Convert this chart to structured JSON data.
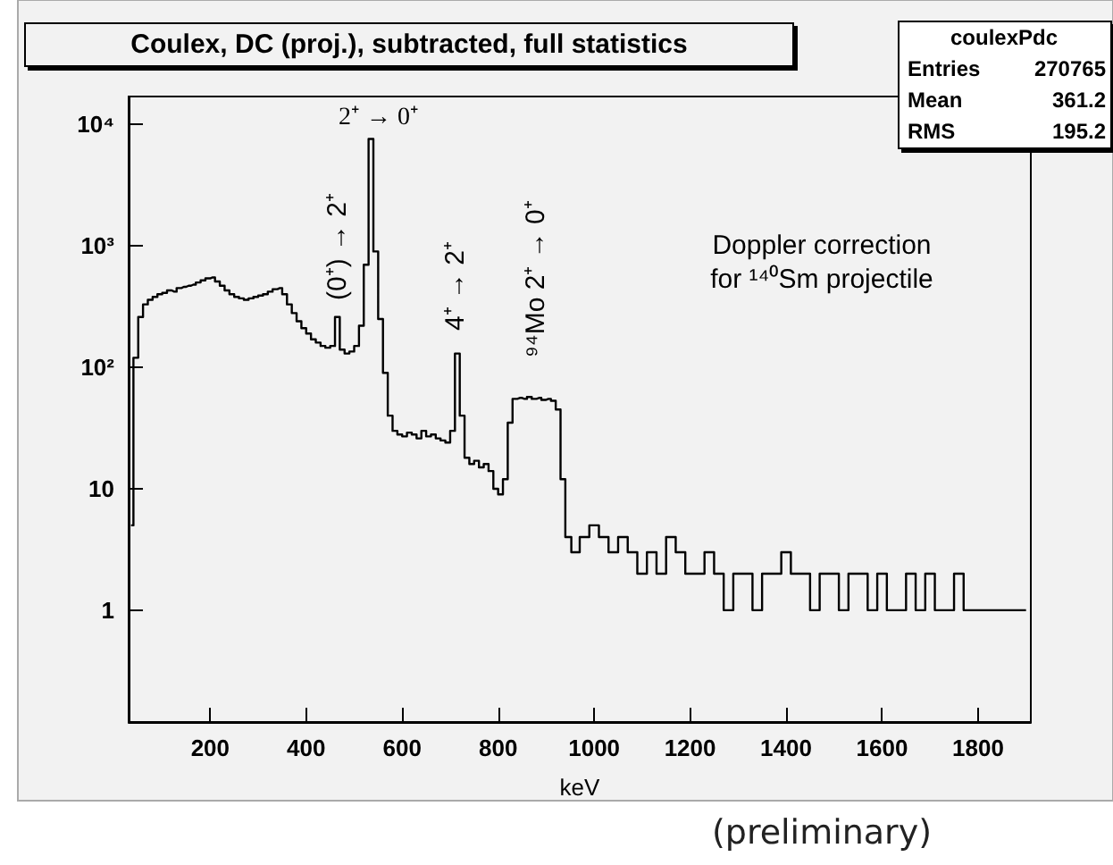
{
  "chart_data": {
    "type": "step",
    "title": "Coulex, DC (proj.), subtracted, full statistics",
    "xlabel": "keV",
    "color": "#000000",
    "x": [
      35,
      45,
      55,
      65,
      75,
      85,
      95,
      105,
      115,
      125,
      135,
      145,
      155,
      165,
      175,
      185,
      195,
      205,
      215,
      225,
      235,
      245,
      255,
      265,
      275,
      285,
      295,
      305,
      315,
      325,
      335,
      345,
      355,
      365,
      375,
      385,
      395,
      405,
      415,
      425,
      435,
      445,
      455,
      465,
      475,
      485,
      495,
      505,
      515,
      525,
      535,
      545,
      555,
      565,
      575,
      585,
      595,
      605,
      615,
      625,
      635,
      645,
      655,
      665,
      675,
      685,
      695,
      705,
      715,
      725,
      735,
      745,
      755,
      765,
      775,
      785,
      795,
      805,
      815,
      825,
      835,
      845,
      855,
      865,
      875,
      885,
      895,
      905,
      915,
      925,
      935,
      945,
      960,
      980,
      1000,
      1020,
      1040,
      1060,
      1080,
      1100,
      1120,
      1140,
      1160,
      1180,
      1200,
      1220,
      1240,
      1260,
      1280,
      1300,
      1320,
      1340,
      1360,
      1380,
      1400,
      1420,
      1440,
      1460,
      1480,
      1500,
      1520,
      1540,
      1560,
      1580,
      1600,
      1620,
      1640,
      1660,
      1680,
      1700,
      1720,
      1740,
      1760,
      1780,
      1800,
      1820,
      1840,
      1860,
      1880,
      1900
    ],
    "values": [
      5,
      120,
      260,
      330,
      360,
      380,
      400,
      410,
      430,
      420,
      450,
      460,
      470,
      480,
      500,
      520,
      540,
      550,
      510,
      470,
      430,
      400,
      380,
      370,
      360,
      370,
      380,
      390,
      400,
      420,
      440,
      450,
      400,
      330,
      280,
      240,
      210,
      190,
      170,
      160,
      150,
      145,
      150,
      260,
      140,
      130,
      135,
      150,
      220,
      700,
      7600,
      900,
      250,
      90,
      40,
      30,
      28,
      27,
      29,
      28,
      26,
      30,
      27,
      28,
      26,
      25,
      24,
      30,
      130,
      40,
      18,
      16,
      17,
      15,
      16,
      14,
      10,
      9,
      12,
      35,
      55,
      56,
      55,
      57,
      55,
      56,
      54,
      55,
      53,
      45,
      12,
      4,
      3,
      4,
      5,
      4,
      3,
      4,
      3,
      2,
      3,
      2,
      4,
      3,
      2,
      2,
      3,
      2,
      1,
      2,
      2,
      1,
      2,
      2,
      3,
      2,
      2,
      1,
      2,
      2,
      1,
      2,
      2,
      1,
      2,
      1,
      1,
      2,
      1,
      2,
      1,
      1,
      2,
      1,
      1,
      1,
      1,
      1,
      1,
      1
    ],
    "xlim": [
      30,
      1910
    ],
    "xticks": [
      200,
      400,
      600,
      800,
      1000,
      1200,
      1400,
      1600,
      1800
    ],
    "ylim": [
      0.12,
      17000
    ],
    "yticks": [
      1,
      10,
      {
        "value": 100,
        "label": "10²"
      },
      {
        "value": 1000,
        "label": "10³"
      },
      {
        "value": 10000,
        "label": "10⁴"
      }
    ],
    "log": "y",
    "annotations": [
      "coulexPdc",
      "Entries 270765",
      "Mean 361.2",
      "RMS 195.2",
      "Doppler correction\nfor ¹⁴⁰Sm projectile",
      "(preliminary)",
      "2⁺ → 0⁺",
      "(0⁺) → 2⁺",
      "4⁺ → 2⁺",
      "⁹⁴Mo 2⁺ → 0⁺"
    ]
  }
}
